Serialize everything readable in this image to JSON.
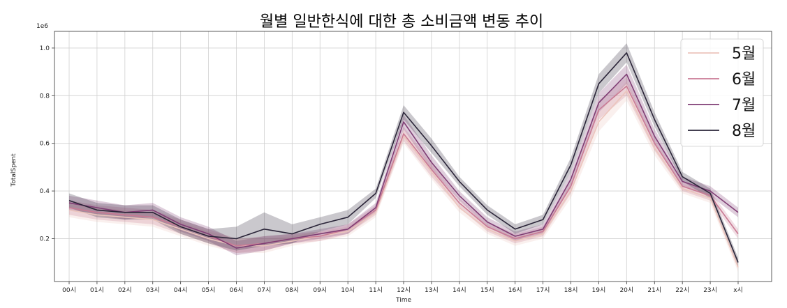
{
  "chart_data": {
    "type": "line",
    "title": "월별 일반한식에 대한 총 소비금액 변동 추이",
    "xlabel": "Time",
    "ylabel": "TotalSpent",
    "y_offset_text": "1e6",
    "categories": [
      "00시",
      "01시",
      "02시",
      "03시",
      "04시",
      "05시",
      "06시",
      "07시",
      "08시",
      "09시",
      "10시",
      "11시",
      "12시",
      "13시",
      "14시",
      "15시",
      "16시",
      "17시",
      "18시",
      "19시",
      "20시",
      "21시",
      "22시",
      "23시",
      "x시"
    ],
    "yticks": [
      0.2,
      0.4,
      0.6,
      0.8,
      1.0
    ],
    "ylim": [
      0.02,
      1.07
    ],
    "grid": true,
    "legend_position": "top-right",
    "series": [
      {
        "name": "5월",
        "color": "#ecc5bd",
        "values": [
          0.32,
          0.3,
          0.29,
          0.28,
          0.24,
          0.2,
          0.17,
          0.17,
          0.19,
          0.21,
          0.23,
          0.31,
          0.63,
          0.48,
          0.33,
          0.24,
          0.19,
          0.22,
          0.4,
          0.69,
          0.82,
          0.58,
          0.41,
          0.37,
          0.08
        ],
        "band": [
          0.03,
          0.03,
          0.03,
          0.03,
          0.03,
          0.03,
          0.03,
          0.03,
          0.02,
          0.02,
          0.02,
          0.02,
          0.03,
          0.03,
          0.02,
          0.02,
          0.02,
          0.02,
          0.03,
          0.04,
          0.04,
          0.03,
          0.02,
          0.02,
          0.02
        ]
      },
      {
        "name": "6월",
        "color": "#c97a94",
        "values": [
          0.33,
          0.31,
          0.3,
          0.29,
          0.25,
          0.21,
          0.17,
          0.18,
          0.2,
          0.21,
          0.24,
          0.32,
          0.64,
          0.49,
          0.35,
          0.25,
          0.2,
          0.23,
          0.42,
          0.74,
          0.84,
          0.6,
          0.42,
          0.38,
          0.22
        ],
        "band": [
          0.03,
          0.03,
          0.03,
          0.03,
          0.03,
          0.03,
          0.03,
          0.03,
          0.02,
          0.02,
          0.02,
          0.02,
          0.03,
          0.03,
          0.02,
          0.02,
          0.02,
          0.02,
          0.03,
          0.04,
          0.04,
          0.03,
          0.02,
          0.02,
          0.02
        ]
      },
      {
        "name": "7월",
        "color": "#7f3d74",
        "values": [
          0.35,
          0.33,
          0.31,
          0.32,
          0.26,
          0.22,
          0.16,
          0.18,
          0.2,
          0.22,
          0.24,
          0.33,
          0.69,
          0.52,
          0.38,
          0.27,
          0.21,
          0.24,
          0.45,
          0.77,
          0.89,
          0.63,
          0.44,
          0.4,
          0.31
        ],
        "band": [
          0.03,
          0.03,
          0.03,
          0.03,
          0.03,
          0.03,
          0.03,
          0.03,
          0.02,
          0.02,
          0.02,
          0.02,
          0.03,
          0.03,
          0.02,
          0.02,
          0.02,
          0.02,
          0.03,
          0.04,
          0.04,
          0.03,
          0.02,
          0.02,
          0.02
        ]
      },
      {
        "name": "8월",
        "color": "#2a2438",
        "values": [
          0.36,
          0.32,
          0.31,
          0.31,
          0.25,
          0.21,
          0.2,
          0.24,
          0.22,
          0.26,
          0.29,
          0.39,
          0.73,
          0.59,
          0.44,
          0.32,
          0.24,
          0.28,
          0.51,
          0.85,
          0.98,
          0.7,
          0.46,
          0.39,
          0.1
        ],
        "band": [
          0.03,
          0.03,
          0.03,
          0.03,
          0.03,
          0.03,
          0.05,
          0.07,
          0.04,
          0.03,
          0.03,
          0.02,
          0.03,
          0.03,
          0.02,
          0.02,
          0.02,
          0.02,
          0.03,
          0.04,
          0.04,
          0.03,
          0.02,
          0.02,
          0.02
        ]
      }
    ]
  }
}
